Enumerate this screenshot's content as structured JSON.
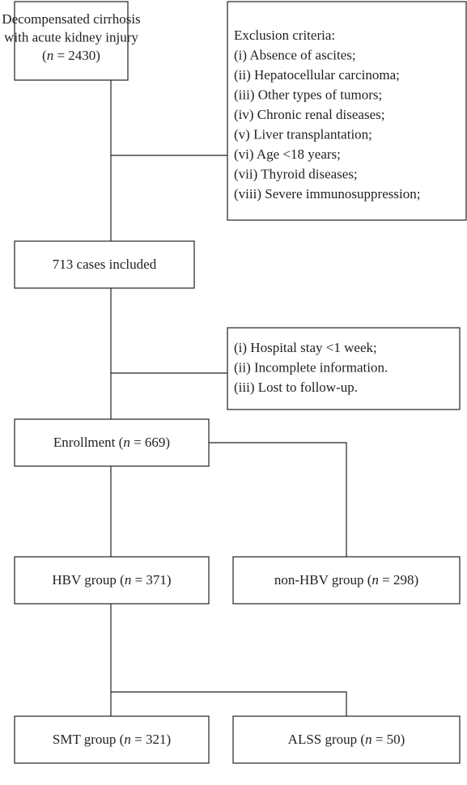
{
  "nodes": [
    {
      "lines": [
        [
          "Decompensated cirrhosis"
        ],
        [
          "with acute kidney injury"
        ],
        [
          "(",
          "n",
          " = 2430)"
        ]
      ]
    },
    {
      "lines": [
        [
          "Exclusion criteria:"
        ],
        [
          "(i) Absence of ascites;"
        ],
        [
          "(ii) Hepatocellular carcinoma;"
        ],
        [
          "(iii) Other types of tumors;"
        ],
        [
          "(iv) Chronic renal diseases;"
        ],
        [
          "(v) Liver transplantation;"
        ],
        [
          "(vi) Age <18 years;"
        ],
        [
          "(vii) Thyroid diseases;"
        ],
        [
          "(viii) Severe immunosuppression;"
        ]
      ]
    },
    {
      "lines": [
        [
          "713 cases included"
        ]
      ]
    },
    {
      "lines": [
        [
          "(i) Hospital stay <1 week;"
        ],
        [
          "(ii) Incomplete information."
        ],
        [
          "(iii) Lost to follow-up."
        ]
      ]
    },
    {
      "lines": [
        [
          "Enrollment (",
          "n",
          " = 669)"
        ]
      ]
    },
    {
      "lines": [
        [
          "HBV group (",
          "n",
          " = 371)"
        ]
      ]
    },
    {
      "lines": [
        [
          "non-HBV group (",
          "n",
          " = 298)"
        ]
      ]
    },
    {
      "lines": [
        [
          "SMT group (",
          "n",
          " = 321)"
        ]
      ]
    },
    {
      "lines": [
        [
          "ALSS group (",
          "n",
          " = 50)"
        ]
      ]
    }
  ]
}
